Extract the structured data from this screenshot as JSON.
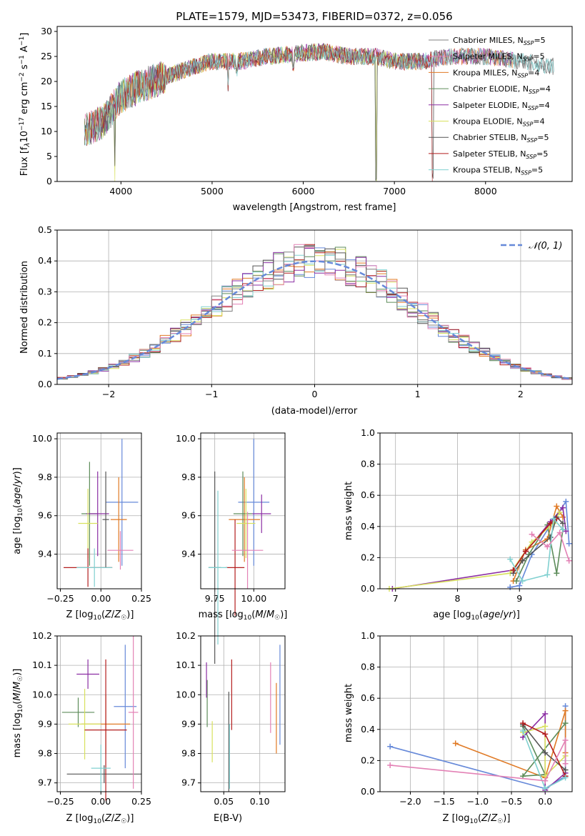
{
  "colors": [
    "#6689d9",
    "#e07a25",
    "#5d8c5a",
    "#8b2ea3",
    "#d8e15e",
    "#555555",
    "#b31e1e",
    "#80d0d0",
    "#e381b5"
  ],
  "series_names": [
    "Chabrier MILES, N_SSP=5",
    "Salpeter MILES, N_SSP=5",
    "Kroupa MILES, N_SSP=4",
    "Chabrier ELODIE, N_SSP=4",
    "Salpeter ELODIE, N_SSP=4",
    "Kroupa ELODIE, N_SSP=4",
    "Chabrier STELIB, N_SSP=5",
    "Salpeter STELIB, N_SSP=5",
    "Kroupa STELIB, N_SSP=5"
  ],
  "legend_colors": [
    "#808080",
    "#e381b5",
    "#e07a25",
    "#5d8c5a",
    "#8b2ea3",
    "#d8e15e",
    "#555555",
    "#b31e1e",
    "#80d0d0"
  ],
  "chart_data": [
    {
      "id": "spectrum",
      "type": "line",
      "title": "PLATE=1579, MJD=53473, FIBERID=0372, z=0.056",
      "xlabel": "wavelength [Angstrom, rest frame]",
      "ylabel": "Flux [f_λ 10^-17 erg cm^-2 s^-1 A^-1]",
      "xlim": [
        3300,
        8950
      ],
      "ylim": [
        0,
        31
      ],
      "xticks": [
        4000,
        5000,
        6000,
        7000,
        8000
      ],
      "yticks": [
        0,
        5,
        10,
        15,
        20,
        25,
        30
      ],
      "continuum": [
        [
          3600,
          10
        ],
        [
          3800,
          12
        ],
        [
          4000,
          17
        ],
        [
          4200,
          19
        ],
        [
          4500,
          21
        ],
        [
          4800,
          23
        ],
        [
          5000,
          24
        ],
        [
          5300,
          24
        ],
        [
          5600,
          25
        ],
        [
          5900,
          25.5
        ],
        [
          6200,
          26
        ],
        [
          6500,
          25
        ],
        [
          6800,
          25
        ],
        [
          7000,
          24
        ],
        [
          7300,
          24
        ],
        [
          7600,
          25
        ],
        [
          8000,
          25
        ],
        [
          8400,
          24
        ],
        [
          8700,
          23
        ]
      ],
      "dips": [
        [
          3933,
          2
        ],
        [
          5175,
          18
        ],
        [
          5270,
          21
        ],
        [
          5890,
          22
        ],
        [
          6563,
          28
        ],
        [
          6800,
          0
        ],
        [
          7420,
          0
        ]
      ],
      "legend_position": "top-right",
      "grid": false
    },
    {
      "id": "residuals",
      "type": "histogram",
      "xlabel": "(data-model)/error",
      "ylabel": "Normed distribution",
      "xlim": [
        -2.5,
        2.5
      ],
      "ylim": [
        0,
        0.5
      ],
      "xticks": [
        -2,
        -1,
        0,
        1,
        2
      ],
      "yticks": [
        0.0,
        0.1,
        0.2,
        0.3,
        0.4,
        0.5
      ],
      "bin_width": 0.1,
      "reference_curve": "N(0,1)",
      "reference_label": "𝒩(0, 1)",
      "legend_position": "top-right",
      "grid": true
    },
    {
      "id": "age_vs_Z",
      "type": "errorbar",
      "xlabel": "Z [log10(Z/Z☉)]",
      "ylabel": "age  [log10(age/yr)]",
      "xlim": [
        -0.27,
        0.25
      ],
      "ylim": [
        9.22,
        10.03
      ],
      "xticks": [
        -0.25,
        0.0,
        0.25
      ],
      "yticks": [
        9.4,
        9.6,
        9.8,
        10.0
      ],
      "points": [
        {
          "x": 0.13,
          "xerr": 0.1,
          "y": 9.67,
          "yerr": 0.33
        },
        {
          "x": 0.11,
          "xerr": 0.05,
          "y": 9.58,
          "yerr": 0.22
        },
        {
          "x": -0.07,
          "xerr": 0.05,
          "y": 9.61,
          "yerr": 0.27
        },
        {
          "x": -0.02,
          "xerr": 0.07,
          "y": 9.61,
          "yerr": 0.22
        },
        {
          "x": -0.08,
          "xerr": 0.06,
          "y": 9.56,
          "yerr": 0.18
        },
        {
          "x": 0.03,
          "xerr": 0.02,
          "y": 9.58,
          "yerr": 0.25
        },
        {
          "x": -0.08,
          "xerr": 0.15,
          "y": 9.33,
          "yerr": 0.1
        },
        {
          "x": -0.04,
          "xerr": 0.11,
          "y": 9.33,
          "yerr": 0.1
        },
        {
          "x": 0.12,
          "xerr": 0.08,
          "y": 9.42,
          "yerr": 0.1
        }
      ],
      "grid": true
    },
    {
      "id": "age_vs_mass",
      "type": "errorbar",
      "xlabel": "mass [log10(M/M☉)]",
      "ylabel": "",
      "xlim": [
        9.66,
        10.2
      ],
      "ylim": [
        9.22,
        10.03
      ],
      "xticks": [
        9.75,
        10.0
      ],
      "yticks": [
        9.4,
        9.6,
        9.8,
        10.0
      ],
      "points": [
        {
          "x": 10.0,
          "xerr": 0.1,
          "y": 9.67,
          "yerr": 0.33
        },
        {
          "x": 9.94,
          "xerr": 0.1,
          "y": 9.58,
          "yerr": 0.22
        },
        {
          "x": 9.93,
          "xerr": 0.06,
          "y": 9.61,
          "yerr": 0.22
        },
        {
          "x": 10.05,
          "xerr": 0.06,
          "y": 9.61,
          "yerr": 0.1
        },
        {
          "x": 9.95,
          "xerr": 0.06,
          "y": 9.56,
          "yerr": 0.18
        },
        {
          "x": 9.75,
          "xerr": 0.04,
          "y": 9.33,
          "yerr": 0.5
        },
        {
          "x": 9.88,
          "xerr": 0.06,
          "y": 9.33,
          "yerr": 0.25
        },
        {
          "x": 9.77,
          "xerr": 0.06,
          "y": 9.33,
          "yerr": 0.4
        },
        {
          "x": 9.96,
          "xerr": 0.1,
          "y": 9.42,
          "yerr": 0.2
        }
      ],
      "grid": true
    },
    {
      "id": "weight_vs_age",
      "type": "line",
      "xlabel": "age  [log10(age/yr)]",
      "ylabel": "mass weight",
      "xlim": [
        6.75,
        9.85
      ],
      "ylim": [
        0,
        1
      ],
      "xticks": [
        7,
        8,
        9
      ],
      "yticks": [
        0.0,
        0.2,
        0.4,
        0.6,
        0.8,
        1.0
      ],
      "series": [
        {
          "x": [
            8.85,
            9.0,
            9.2,
            9.55,
            9.75,
            9.8
          ],
          "y": [
            0.01,
            0.02,
            0.22,
            0.44,
            0.56,
            0.29
          ]
        },
        {
          "x": [
            8.9,
            9.1,
            9.45,
            9.6,
            9.7
          ],
          "y": [
            0.05,
            0.25,
            0.32,
            0.53,
            0.46
          ]
        },
        {
          "x": [
            8.95,
            9.15,
            9.45,
            9.6,
            9.7
          ],
          "y": [
            0.05,
            0.22,
            0.41,
            0.1,
            0.38
          ]
        },
        {
          "x": [
            6.95,
            8.9,
            9.1,
            9.5,
            9.7,
            9.75
          ],
          "y": [
            0.0,
            0.12,
            0.24,
            0.43,
            0.52,
            0.37
          ]
        },
        {
          "x": [
            6.9,
            8.85,
            9.2,
            9.55,
            9.65
          ],
          "y": [
            0.0,
            0.1,
            0.3,
            0.42,
            0.49
          ]
        },
        {
          "x": [
            8.9,
            9.05,
            9.5,
            9.6,
            9.7
          ],
          "y": [
            0.1,
            0.18,
            0.33,
            0.46,
            0.42
          ]
        },
        {
          "x": [
            8.9,
            9.1,
            9.5,
            9.6
          ],
          "y": [
            0.12,
            0.24,
            0.42,
            0.45
          ]
        },
        {
          "x": [
            8.85,
            9.05,
            9.45,
            9.55,
            9.7
          ],
          "y": [
            0.19,
            0.05,
            0.09,
            0.45,
            0.38
          ]
        },
        {
          "x": [
            9.2,
            9.45,
            9.65,
            9.8
          ],
          "y": [
            0.35,
            0.27,
            0.36,
            0.18
          ]
        }
      ],
      "grid": true
    },
    {
      "id": "mass_vs_Z",
      "type": "errorbar",
      "xlabel": "Z [log10(Z/Z☉)]",
      "ylabel": "mass [log10(M/M☉)]",
      "xlim": [
        -0.27,
        0.25
      ],
      "ylim": [
        9.67,
        10.2
      ],
      "xticks": [
        -0.25,
        0.0,
        0.25
      ],
      "yticks": [
        9.7,
        9.8,
        9.9,
        10.0,
        10.1,
        10.2
      ],
      "points": [
        {
          "x": 0.15,
          "xerr": 0.07,
          "y": 9.96,
          "yerr": 0.21
        },
        {
          "x": 0.03,
          "xerr": 0.15,
          "y": 9.9,
          "yerr": 0.1
        },
        {
          "x": -0.14,
          "xerr": 0.1,
          "y": 9.94,
          "yerr": 0.05
        },
        {
          "x": -0.08,
          "xerr": 0.07,
          "y": 10.07,
          "yerr": 0.05
        },
        {
          "x": -0.1,
          "xerr": 0.1,
          "y": 9.9,
          "yerr": 0.12
        },
        {
          "x": 0.02,
          "xerr": 0.23,
          "y": 9.73,
          "yerr": 0.03
        },
        {
          "x": 0.03,
          "xerr": 0.13,
          "y": 9.88,
          "yerr": 0.24
        },
        {
          "x": 0.0,
          "xerr": 0.06,
          "y": 9.75,
          "yerr": 0.08
        },
        {
          "x": 0.2,
          "xerr": 0.03,
          "y": 9.94,
          "yerr": 0.26
        }
      ],
      "grid": true
    },
    {
      "id": "mass_vs_EBV",
      "type": "errorbar",
      "xlabel": "E(B-V)",
      "ylabel": "",
      "xlim": [
        0.018,
        0.135
      ],
      "ylim": [
        9.67,
        10.2
      ],
      "xticks": [
        0.05,
        0.1
      ],
      "yticks": [
        9.7,
        9.8,
        9.9,
        10.0,
        10.1,
        10.2
      ],
      "points": [
        {
          "x": 0.128,
          "y": 10.0,
          "yerr": 0.17
        },
        {
          "x": 0.123,
          "y": 9.92,
          "yerr": 0.12
        },
        {
          "x": 0.027,
          "y": 9.97,
          "yerr": 0.08
        },
        {
          "x": 0.026,
          "y": 10.05,
          "yerr": 0.06
        },
        {
          "x": 0.034,
          "y": 9.84,
          "yerr": 0.07
        },
        {
          "x": 0.057,
          "y": 9.84,
          "yerr": 0.17
        },
        {
          "x": 0.061,
          "y": 10.0,
          "yerr": 0.12
        },
        {
          "x": 0.058,
          "y": 9.79,
          "yerr": 0.11
        },
        {
          "x": 0.115,
          "y": 9.99,
          "yerr": 0.12
        }
      ],
      "grid": true
    },
    {
      "id": "weight_vs_Z",
      "type": "line",
      "xlabel": "Z [log10(Z/Z☉)]",
      "ylabel": "mass weight",
      "xlim": [
        -2.45,
        0.4
      ],
      "ylim": [
        0,
        1
      ],
      "xticks": [
        -2.0,
        -1.5,
        -1.0,
        -0.5,
        0.0
      ],
      "yticks": [
        0.0,
        0.2,
        0.4,
        0.6,
        0.8,
        1.0
      ],
      "series": [
        {
          "x": [
            -2.3,
            0.0,
            0.3,
            0.3
          ],
          "y": [
            0.29,
            0.02,
            0.1,
            0.55
          ]
        },
        {
          "x": [
            -1.33,
            0.0,
            0.3,
            0.3
          ],
          "y": [
            0.31,
            0.09,
            0.52,
            0.25
          ]
        },
        {
          "x": [
            -0.33,
            0.0,
            -0.33,
            0.3
          ],
          "y": [
            0.42,
            0.11,
            0.1,
            0.44
          ]
        },
        {
          "x": [
            -0.33,
            0.0,
            0.0,
            0.3
          ],
          "y": [
            0.35,
            0.5,
            0.01,
            0.12
          ]
        },
        {
          "x": [
            -0.33,
            0.0,
            0.0,
            0.3
          ],
          "y": [
            0.38,
            0.42,
            0.1,
            0.23
          ]
        },
        {
          "x": [
            -0.33,
            0.0,
            0.3
          ],
          "y": [
            0.43,
            0.25,
            0.14
          ]
        },
        {
          "x": [
            -0.33,
            0.0,
            0.3
          ],
          "y": [
            0.44,
            0.37,
            0.1
          ]
        },
        {
          "x": [
            -0.33,
            0.0,
            0.3
          ],
          "y": [
            0.39,
            0.02,
            0.09
          ]
        },
        {
          "x": [
            -2.3,
            0.0,
            0.3,
            0.3
          ],
          "y": [
            0.17,
            0.07,
            0.33,
            0.18
          ]
        }
      ],
      "grid": true
    }
  ]
}
